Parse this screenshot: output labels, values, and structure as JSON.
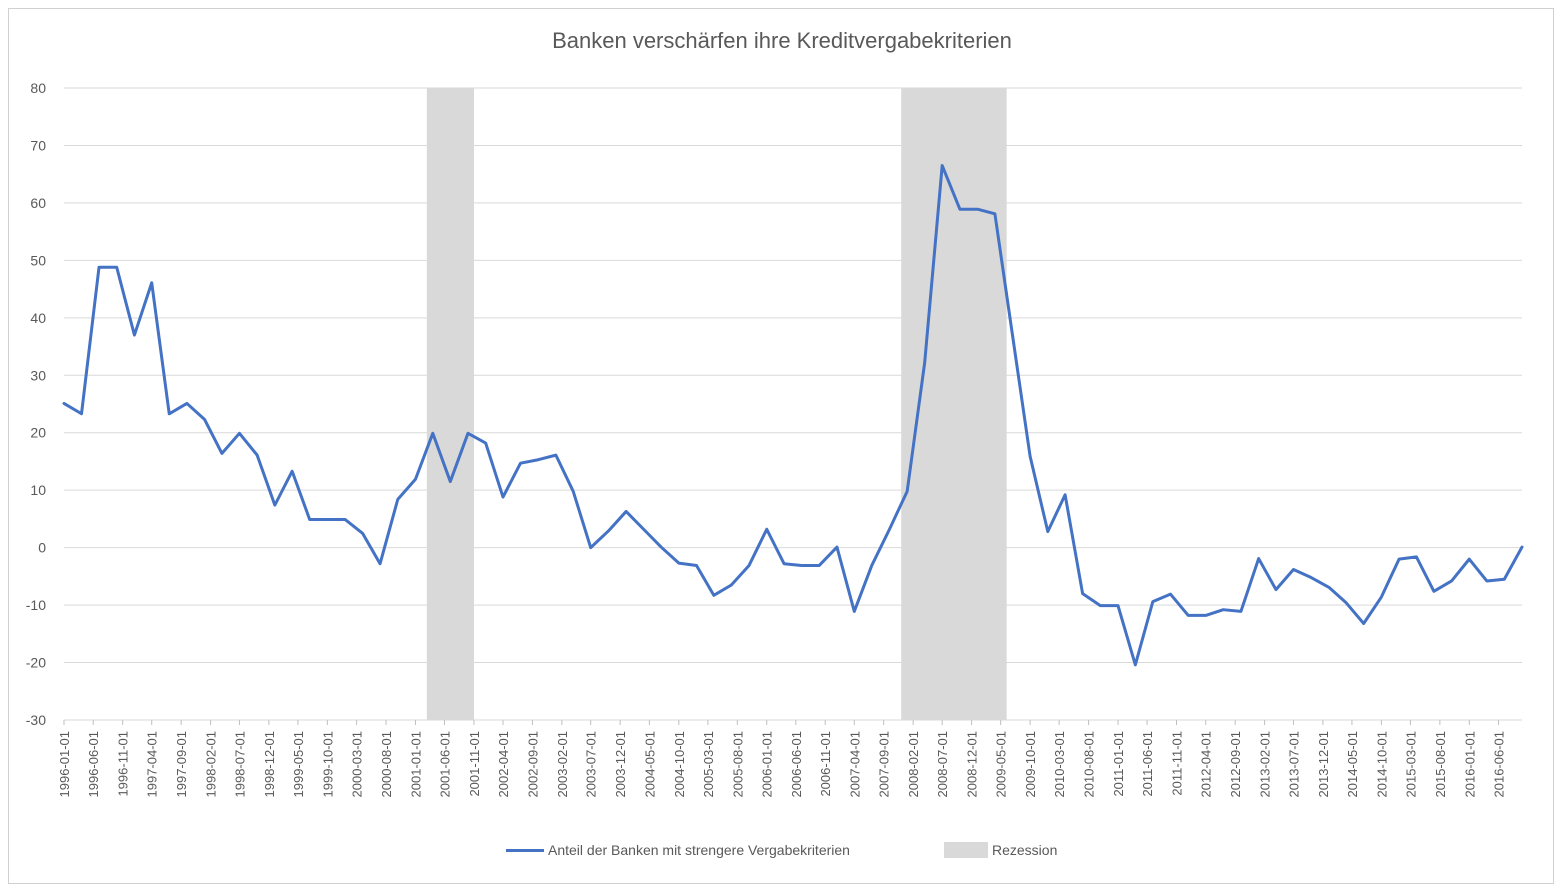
{
  "chart_data": {
    "type": "line",
    "title": "Banken verschärfen ihre Kreditvergabekriterien",
    "xlabel": "",
    "ylabel": "",
    "ylim": [
      -30,
      80
    ],
    "yticks": [
      "80",
      "70",
      "60",
      "50",
      "40",
      "30",
      "20",
      "10",
      "0",
      "-10",
      "-20",
      "-30"
    ],
    "grid": true,
    "legend_position": "bottom",
    "colors": {
      "line": "#4472c4",
      "recession": "#d9d9d9",
      "grid": "#d9d9d9"
    },
    "x_tick_labels": [
      "1996-01-01",
      "1996-06-01",
      "1996-11-01",
      "1997-04-01",
      "1997-09-01",
      "1998-02-01",
      "1998-07-01",
      "1998-12-01",
      "1999-05-01",
      "1999-10-01",
      "2000-03-01",
      "2000-08-01",
      "2001-01-01",
      "2001-06-01",
      "2001-11-01",
      "2002-04-01",
      "2002-09-01",
      "2003-02-01",
      "2003-07-01",
      "2003-12-01",
      "2004-05-01",
      "2004-10-01",
      "2005-03-01",
      "2005-08-01",
      "2006-01-01",
      "2006-06-01",
      "2006-11-01",
      "2007-04-01",
      "2007-09-01",
      "2008-02-01",
      "2008-07-01",
      "2008-12-01",
      "2009-05-01",
      "2009-10-01",
      "2010-03-01",
      "2010-08-01",
      "2011-01-01",
      "2011-06-01",
      "2011-11-01",
      "2012-04-01",
      "2012-09-01",
      "2013-02-01",
      "2013-07-01",
      "2013-12-01",
      "2014-05-01",
      "2014-10-01",
      "2015-03-01",
      "2015-08-01",
      "2016-01-01",
      "2016-06-01"
    ],
    "x": [
      "1996-01-01",
      "1996-04-01",
      "1996-07-01",
      "1996-10-01",
      "1997-01-01",
      "1997-04-01",
      "1997-07-01",
      "1997-10-01",
      "1998-01-01",
      "1998-04-01",
      "1998-07-01",
      "1998-10-01",
      "1999-01-01",
      "1999-04-01",
      "1999-07-01",
      "1999-10-01",
      "2000-01-01",
      "2000-04-01",
      "2000-07-01",
      "2000-10-01",
      "2001-01-01",
      "2001-04-01",
      "2001-07-01",
      "2001-10-01",
      "2002-01-01",
      "2002-04-01",
      "2002-07-01",
      "2002-10-01",
      "2003-01-01",
      "2003-04-01",
      "2003-07-01",
      "2003-10-01",
      "2004-01-01",
      "2004-04-01",
      "2004-07-01",
      "2004-10-01",
      "2005-01-01",
      "2005-04-01",
      "2005-07-01",
      "2005-10-01",
      "2006-01-01",
      "2006-04-01",
      "2006-07-01",
      "2006-10-01",
      "2007-01-01",
      "2007-04-01",
      "2007-07-01",
      "2007-10-01",
      "2008-01-01",
      "2008-04-01",
      "2008-07-01",
      "2008-10-01",
      "2009-01-01",
      "2009-04-01",
      "2009-07-01",
      "2009-10-01",
      "2010-01-01",
      "2010-04-01",
      "2010-07-01",
      "2010-10-01",
      "2011-01-01",
      "2011-04-01",
      "2011-07-01",
      "2011-10-01",
      "2012-01-01",
      "2012-04-01",
      "2012-07-01",
      "2012-10-01",
      "2013-01-01",
      "2013-04-01",
      "2013-07-01",
      "2013-10-01",
      "2014-01-01",
      "2014-04-01",
      "2014-07-01",
      "2014-10-01",
      "2015-01-01",
      "2015-04-01",
      "2015-07-01",
      "2015-10-01",
      "2016-01-01",
      "2016-04-01",
      "2016-07-01",
      "2016-10-01"
    ],
    "series": [
      {
        "name": "Anteil der Banken mit strengere Vergabekriterien",
        "values": [
          25.1,
          23.3,
          48.8,
          48.8,
          37.0,
          46.1,
          23.3,
          25.1,
          22.3,
          16.4,
          19.9,
          16.1,
          7.4,
          13.3,
          4.9,
          4.9,
          4.9,
          2.5,
          -2.8,
          8.4,
          11.9,
          19.9,
          11.5,
          19.9,
          18.2,
          8.8,
          14.7,
          15.3,
          16.1,
          9.8,
          0.0,
          2.9,
          6.3,
          3.2,
          0.1,
          -2.7,
          -3.1,
          -8.3,
          -6.5,
          -3.1,
          3.2,
          -2.8,
          -3.1,
          -3.1,
          0.1,
          -11.1,
          -3.1,
          3.2,
          9.8,
          32.2,
          66.5,
          58.9,
          58.9,
          58.1,
          37.1,
          15.9,
          2.8,
          9.2,
          -8.0,
          -10.1,
          -10.1,
          -20.4,
          -9.4,
          -8.1,
          -11.8,
          -11.8,
          -10.8,
          -11.1,
          -1.9,
          -7.3,
          -3.8,
          -5.2,
          -6.9,
          -9.6,
          -13.2,
          -8.6,
          -2.0,
          -1.6,
          -7.6,
          -5.8,
          -2.0,
          -5.8,
          -5.5,
          0.1
        ]
      }
    ],
    "recessions": [
      {
        "name": "Rezession",
        "start": "2001-03-01",
        "end": "2001-11-01"
      },
      {
        "name": "Rezession",
        "start": "2007-12-01",
        "end": "2009-06-01"
      }
    ],
    "legend": [
      {
        "label": "Anteil der Banken mit strengere Vergabekriterien",
        "kind": "line"
      },
      {
        "label": "Rezession",
        "kind": "area"
      }
    ]
  }
}
